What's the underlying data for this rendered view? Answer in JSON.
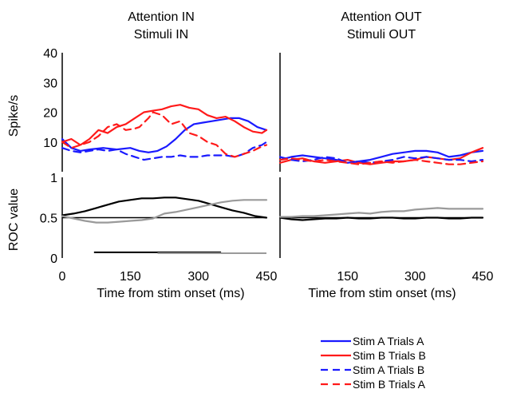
{
  "chart_data": [
    {
      "type": "line",
      "panel": "attention-in-spikes",
      "title_lines": [
        "Attention IN",
        "Stimuli IN"
      ],
      "ylabel": "Spike/s",
      "xlabel": "",
      "xlim": [
        0,
        450
      ],
      "ylim": [
        0,
        40
      ],
      "yticks": [
        10,
        20,
        30,
        40
      ],
      "series": [
        {
          "name": "Stim A Trials A",
          "color": "#1a1aff",
          "dash": "solid",
          "x": [
            0,
            20,
            40,
            60,
            90,
            120,
            150,
            170,
            190,
            210,
            230,
            250,
            270,
            290,
            310,
            330,
            350,
            370,
            390,
            410,
            430,
            450
          ],
          "y": [
            11,
            8,
            7,
            7.5,
            8,
            7.5,
            8,
            7,
            6.5,
            7,
            8.5,
            11,
            14,
            16,
            16.5,
            17,
            17.5,
            18,
            18,
            17,
            15,
            14
          ]
        },
        {
          "name": "Stim B Trials B",
          "color": "#ff1a1a",
          "dash": "solid",
          "x": [
            0,
            20,
            40,
            60,
            80,
            100,
            120,
            140,
            160,
            180,
            200,
            220,
            240,
            260,
            280,
            300,
            320,
            340,
            360,
            380,
            400,
            420,
            440,
            450
          ],
          "y": [
            10,
            11,
            9,
            11,
            14,
            13,
            15,
            16,
            18,
            20,
            20.5,
            21,
            22,
            22.5,
            21.5,
            21,
            19,
            18,
            18.5,
            17,
            15,
            13.5,
            13,
            14
          ]
        },
        {
          "name": "Stim A Trials B",
          "color": "#1a1aff",
          "dash": "dashed",
          "x": [
            0,
            20,
            40,
            60,
            80,
            100,
            120,
            140,
            160,
            180,
            200,
            220,
            240,
            260,
            280,
            300,
            320,
            340,
            360,
            380,
            400,
            420,
            440,
            450
          ],
          "y": [
            8,
            7,
            6.5,
            7,
            7.5,
            7,
            7.5,
            6,
            5,
            4,
            4.5,
            5,
            5,
            5.5,
            5,
            5,
            5.5,
            5.5,
            5.5,
            5,
            6,
            8,
            9,
            10
          ]
        },
        {
          "name": "Stim B Trials A",
          "color": "#ff1a1a",
          "dash": "dashed",
          "x": [
            0,
            20,
            40,
            60,
            80,
            100,
            120,
            140,
            160,
            170,
            190,
            200,
            220,
            240,
            260,
            280,
            300,
            320,
            340,
            360,
            380,
            400,
            420,
            440,
            450
          ],
          "y": [
            10,
            8,
            9,
            10,
            12,
            15,
            16,
            14,
            14.5,
            15,
            18,
            20,
            19,
            16,
            17,
            13,
            12,
            10,
            9,
            6,
            5,
            6,
            7,
            8.5,
            9
          ]
        }
      ]
    },
    {
      "type": "line",
      "panel": "attention-out-spikes",
      "title_lines": [
        "Attention OUT",
        "Stimuli OUT"
      ],
      "xlim": [
        0,
        450
      ],
      "ylim": [
        0,
        40
      ],
      "series": [
        {
          "name": "Stim A Trials A",
          "color": "#1a1aff",
          "dash": "solid",
          "x": [
            0,
            25,
            50,
            75,
            100,
            125,
            150,
            175,
            200,
            225,
            250,
            275,
            300,
            325,
            350,
            375,
            400,
            425,
            450
          ],
          "y": [
            4,
            5,
            5.5,
            5,
            4.5,
            4,
            3,
            3.5,
            4,
            5,
            6,
            6.5,
            7,
            7,
            6.5,
            5,
            5.5,
            6.5,
            7
          ]
        },
        {
          "name": "Stim B Trials B",
          "color": "#ff1a1a",
          "dash": "solid",
          "x": [
            0,
            25,
            50,
            75,
            100,
            125,
            150,
            175,
            200,
            225,
            250,
            275,
            300,
            325,
            350,
            375,
            400,
            425,
            450
          ],
          "y": [
            3,
            4,
            4.5,
            3.5,
            3,
            3.5,
            4,
            3,
            2.5,
            3,
            3.5,
            3.5,
            4,
            5,
            4.5,
            4,
            4.5,
            6.5,
            8
          ]
        },
        {
          "name": "Stim A Trials B",
          "color": "#1a1aff",
          "dash": "dashed",
          "x": [
            0,
            25,
            50,
            75,
            100,
            125,
            150,
            175,
            200,
            225,
            250,
            275,
            300,
            325,
            350,
            375,
            400,
            425,
            450
          ],
          "y": [
            5,
            4,
            3.5,
            4,
            5,
            4.5,
            3,
            3.5,
            3,
            3.5,
            4,
            5,
            4.5,
            5,
            4.5,
            4,
            4,
            3.5,
            4
          ]
        },
        {
          "name": "Stim B Trials A",
          "color": "#ff1a1a",
          "dash": "dashed",
          "x": [
            0,
            25,
            50,
            75,
            100,
            125,
            150,
            175,
            200,
            225,
            250,
            275,
            300,
            325,
            350,
            375,
            400,
            425,
            450
          ],
          "y": [
            4,
            4.5,
            4,
            3.5,
            4,
            3.5,
            3,
            2.5,
            3,
            3.5,
            3,
            3.5,
            4,
            3.5,
            3,
            2.5,
            2.5,
            3,
            3.5
          ]
        }
      ]
    },
    {
      "type": "line",
      "panel": "attention-in-roc",
      "ylabel": "ROC value",
      "xlabel": "Time from stim onset (ms)",
      "xlim": [
        0,
        450
      ],
      "ylim": [
        0,
        1
      ],
      "yticks": [
        0,
        0.5,
        1
      ],
      "xticks": [
        0,
        150,
        300,
        450
      ],
      "reference_line": 0.5,
      "series": [
        {
          "color": "#000000",
          "x": [
            0,
            25,
            50,
            75,
            100,
            125,
            150,
            175,
            200,
            225,
            250,
            275,
            300,
            325,
            350,
            375,
            400,
            425,
            450
          ],
          "y": [
            0.53,
            0.55,
            0.58,
            0.62,
            0.66,
            0.7,
            0.72,
            0.74,
            0.74,
            0.75,
            0.75,
            0.73,
            0.71,
            0.67,
            0.63,
            0.59,
            0.56,
            0.52,
            0.5
          ]
        },
        {
          "color": "#9a9a9a",
          "x": [
            0,
            25,
            50,
            75,
            100,
            125,
            150,
            175,
            200,
            225,
            250,
            275,
            300,
            325,
            350,
            375,
            400,
            425,
            450
          ],
          "y": [
            0.52,
            0.49,
            0.46,
            0.44,
            0.44,
            0.45,
            0.46,
            0.47,
            0.49,
            0.55,
            0.57,
            0.6,
            0.63,
            0.66,
            0.69,
            0.71,
            0.72,
            0.72,
            0.72
          ]
        }
      ],
      "significance_bars": [
        {
          "color": "#000000",
          "x_start": 70,
          "x_end": 350,
          "y": 0.07
        },
        {
          "color": "#9a9a9a",
          "x_start": 210,
          "x_end": 450,
          "y": 0.06
        }
      ]
    },
    {
      "type": "line",
      "panel": "attention-out-roc",
      "xlabel": "Time from stim onset (ms)",
      "xlim": [
        0,
        450
      ],
      "ylim": [
        0,
        1
      ],
      "xticks": [
        150,
        300,
        450
      ],
      "reference_line": 0.5,
      "series": [
        {
          "color": "#000000",
          "x": [
            0,
            25,
            50,
            75,
            100,
            125,
            150,
            175,
            200,
            225,
            250,
            275,
            300,
            325,
            350,
            375,
            400,
            425,
            450
          ],
          "y": [
            0.5,
            0.48,
            0.47,
            0.48,
            0.49,
            0.49,
            0.5,
            0.49,
            0.49,
            0.5,
            0.5,
            0.49,
            0.49,
            0.5,
            0.5,
            0.49,
            0.49,
            0.5,
            0.5
          ]
        },
        {
          "color": "#9a9a9a",
          "x": [
            0,
            25,
            50,
            75,
            100,
            125,
            150,
            175,
            200,
            225,
            250,
            275,
            300,
            325,
            350,
            375,
            400,
            425,
            450
          ],
          "y": [
            0.51,
            0.51,
            0.52,
            0.52,
            0.53,
            0.54,
            0.55,
            0.56,
            0.55,
            0.57,
            0.58,
            0.58,
            0.6,
            0.61,
            0.62,
            0.61,
            0.61,
            0.61,
            0.61
          ]
        }
      ]
    }
  ],
  "legend": {
    "entries": [
      {
        "label": "Stim A Trials A",
        "color": "#1a1aff",
        "dash": "solid"
      },
      {
        "label": "Stim B Trials B",
        "color": "#ff1a1a",
        "dash": "solid"
      },
      {
        "label": "Stim A Trials B",
        "color": "#1a1aff",
        "dash": "dashed"
      },
      {
        "label": "Stim B Trials A",
        "color": "#ff1a1a",
        "dash": "dashed"
      }
    ]
  }
}
